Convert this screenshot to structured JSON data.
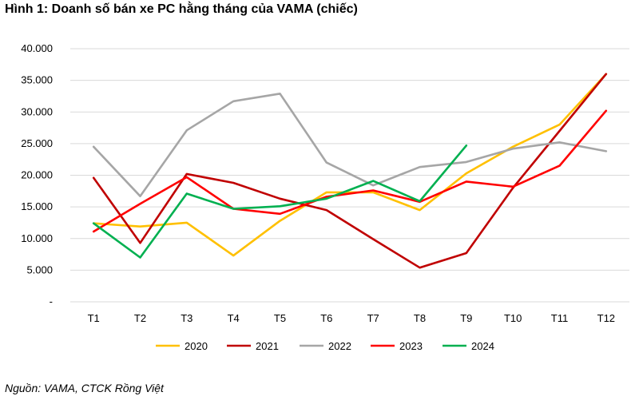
{
  "chart_data": {
    "type": "line",
    "title": "Hình 1: Doanh số bán xe PC hằng tháng của VAMA (chiếc)",
    "source": "Nguồn: VAMA, CTCK Rồng Việt",
    "categories": [
      "T1",
      "T2",
      "T3",
      "T4",
      "T5",
      "T6",
      "T7",
      "T8",
      "T9",
      "T10",
      "T11",
      "T12"
    ],
    "y_ticks": [
      "-",
      "5.000",
      "10.000",
      "15.000",
      "20.000",
      "25.000",
      "30.000",
      "35.000",
      "40.000"
    ],
    "ylim": [
      0,
      40000
    ],
    "grid": "horizontal",
    "legend_position": "bottom",
    "series": [
      {
        "name": "2020",
        "color": "#FFC000",
        "values": [
          12400,
          11900,
          12500,
          7300,
          12800,
          17300,
          17300,
          14500,
          20300,
          24500,
          28000,
          36000
        ]
      },
      {
        "name": "2021",
        "color": "#C00000",
        "values": [
          19600,
          9300,
          20200,
          18800,
          16300,
          14500,
          9900,
          5400,
          7700,
          18000,
          27000,
          36000
        ]
      },
      {
        "name": "2022",
        "color": "#A6A6A6",
        "values": [
          24500,
          16700,
          27100,
          31700,
          32900,
          22000,
          18400,
          21300,
          22100,
          24200,
          25200,
          23800
        ]
      },
      {
        "name": "2023",
        "color": "#FF0000",
        "values": [
          11100,
          15500,
          19700,
          14700,
          13900,
          16600,
          17600,
          15800,
          19000,
          18200,
          21500,
          30200
        ]
      },
      {
        "name": "2024",
        "color": "#00B050",
        "values": [
          12400,
          7000,
          17100,
          14700,
          15100,
          16300,
          19100,
          15900,
          24700,
          null,
          null,
          null
        ]
      }
    ]
  }
}
